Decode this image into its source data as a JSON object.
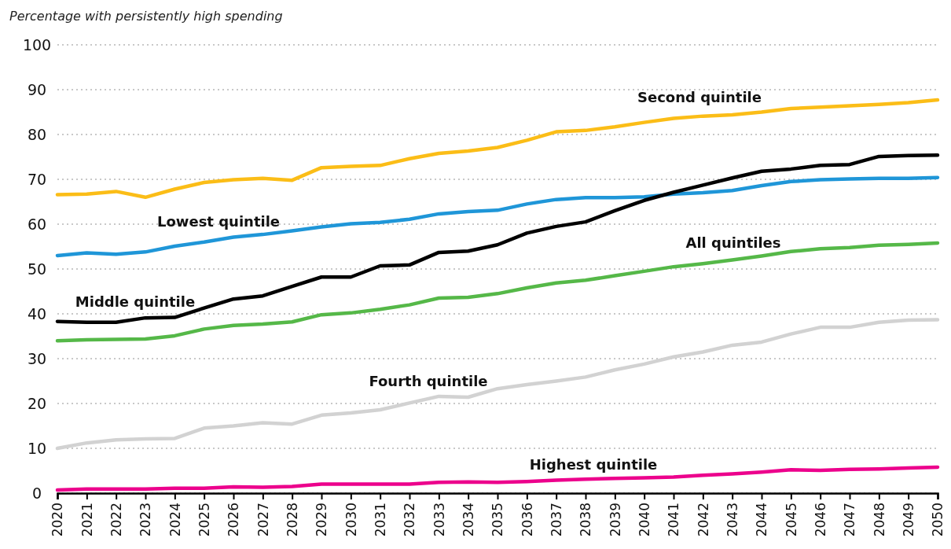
{
  "chart_data": {
    "type": "line",
    "ylabel": "Percentage with persistently high spending",
    "categories": [
      "2020",
      "2021",
      "2022",
      "2023",
      "2024",
      "2025",
      "2026",
      "2027",
      "2028",
      "2029",
      "2030",
      "2031",
      "2032",
      "2033",
      "2034",
      "2035",
      "2036",
      "2037",
      "2038",
      "2039",
      "2040",
      "2041",
      "2042",
      "2043",
      "2044",
      "2045",
      "2046",
      "2047",
      "2048",
      "2049",
      "2050"
    ],
    "ylim": [
      0,
      100
    ],
    "yticks": [
      0,
      10,
      20,
      30,
      40,
      50,
      60,
      70,
      80,
      90,
      100
    ],
    "grid": "y",
    "legend": false,
    "marker": "none",
    "line_style": "solid",
    "series": [
      {
        "name": "Second quintile",
        "color": "#fbbd17",
        "values": [
          66.6,
          66.7,
          67.3,
          66.0,
          67.8,
          69.3,
          69.9,
          70.2,
          69.8,
          72.6,
          72.9,
          73.1,
          74.6,
          75.8,
          76.3,
          77.1,
          78.7,
          80.6,
          80.9,
          81.7,
          82.7,
          83.6,
          84.1,
          84.4,
          85.0,
          85.8,
          86.1,
          86.4,
          86.7,
          87.1,
          87.7
        ]
      },
      {
        "name": "Lowest quintile",
        "color": "#1f96d8",
        "values": [
          53.0,
          53.6,
          53.3,
          53.8,
          55.1,
          56.0,
          57.1,
          57.7,
          58.5,
          59.4,
          60.1,
          60.4,
          61.1,
          62.3,
          62.8,
          63.1,
          64.5,
          65.5,
          65.9,
          65.9,
          66.1,
          66.7,
          67.0,
          67.5,
          68.6,
          69.5,
          69.9,
          70.1,
          70.2,
          70.2,
          70.4
        ]
      },
      {
        "name": "Middle quintile",
        "color": "#000000",
        "values": [
          38.3,
          38.1,
          38.1,
          39.1,
          39.2,
          41.3,
          43.3,
          44.0,
          46.1,
          48.2,
          48.2,
          50.7,
          50.9,
          53.7,
          54.0,
          55.4,
          58.0,
          59.5,
          60.5,
          63.0,
          65.3,
          67.1,
          68.7,
          70.3,
          71.8,
          72.3,
          73.1,
          73.3,
          75.1,
          75.3,
          75.4
        ]
      },
      {
        "name": "All quintiles",
        "color": "#55b848",
        "values": [
          34.0,
          34.2,
          34.3,
          34.4,
          35.1,
          36.6,
          37.4,
          37.7,
          38.2,
          39.8,
          40.2,
          41.0,
          42.0,
          43.5,
          43.7,
          44.5,
          45.8,
          46.9,
          47.5,
          48.5,
          49.5,
          50.5,
          51.2,
          52.0,
          52.9,
          53.9,
          54.5,
          54.8,
          55.3,
          55.5,
          55.8
        ]
      },
      {
        "name": "Fourth quintile",
        "color": "#d2d2d2",
        "values": [
          10.0,
          11.2,
          11.9,
          12.1,
          12.2,
          14.5,
          15.0,
          15.7,
          15.4,
          17.4,
          17.9,
          18.6,
          20.1,
          21.6,
          21.4,
          23.3,
          24.2,
          25.0,
          25.9,
          27.5,
          28.8,
          30.4,
          31.5,
          33.0,
          33.7,
          35.5,
          37.0,
          37.0,
          38.1,
          38.6,
          38.7
        ]
      },
      {
        "name": "Highest quintile",
        "color": "#ec008c",
        "values": [
          0.7,
          0.9,
          0.9,
          0.9,
          1.1,
          1.1,
          1.4,
          1.3,
          1.5,
          2.0,
          2.0,
          2.0,
          2.0,
          2.4,
          2.5,
          2.4,
          2.6,
          2.9,
          3.1,
          3.3,
          3.4,
          3.6,
          4.0,
          4.3,
          4.7,
          5.2,
          5.1,
          5.3,
          5.4,
          5.6,
          5.8
        ]
      }
    ]
  }
}
